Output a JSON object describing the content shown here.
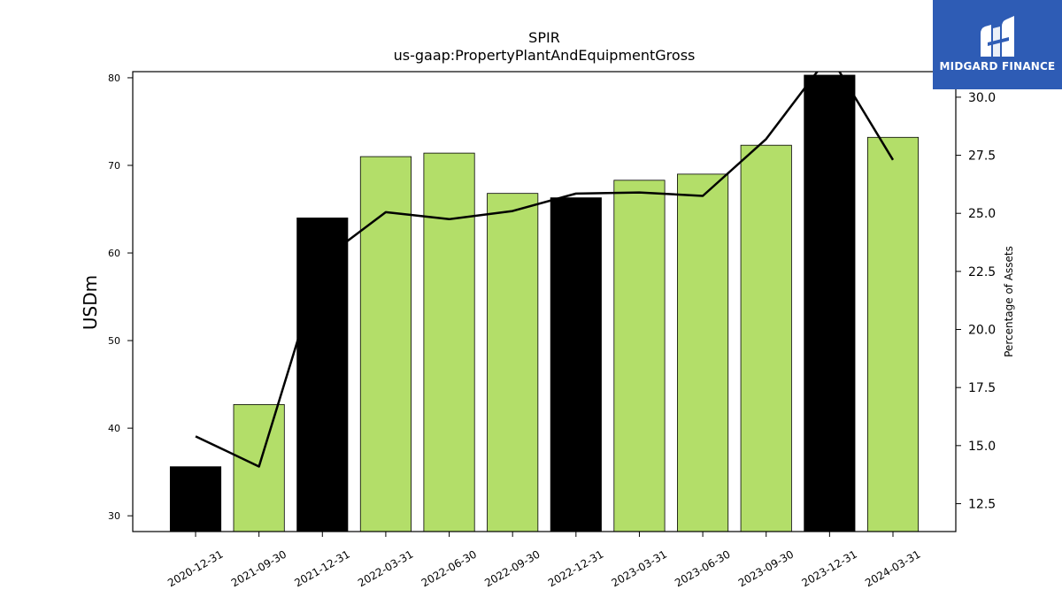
{
  "chart_data": {
    "type": "bar",
    "title": "SPIR",
    "subtitle": "us-gaap:PropertyPlantAndEquipmentGross",
    "ylabel": "USDm",
    "y2label": "Percentage of Assets",
    "ylim": [
      28.2,
      80.7
    ],
    "y2lim": [
      11.3,
      31.1
    ],
    "yticks": [
      30,
      40,
      50,
      60,
      70,
      80
    ],
    "y2ticks": [
      "12.5",
      "15.0",
      "17.5",
      "20.0",
      "22.5",
      "25.0",
      "27.5",
      "30.0"
    ],
    "categories": [
      "2020-12-31",
      "2021-09-30",
      "2021-12-31",
      "2022-03-31",
      "2022-06-30",
      "2022-09-30",
      "2022-12-31",
      "2023-03-31",
      "2023-06-30",
      "2023-09-30",
      "2023-12-31",
      "2024-03-31"
    ],
    "series": [
      {
        "kind": "bar",
        "values": [
          35.6,
          42.7,
          64.0,
          71.0,
          71.4,
          66.8,
          66.3,
          68.3,
          69.0,
          72.3,
          80.3,
          73.2
        ],
        "colors": [
          "#000000",
          "#b3de69",
          "#000000",
          "#b3de69",
          "#b3de69",
          "#b3de69",
          "#000000",
          "#b3de69",
          "#b3de69",
          "#b3de69",
          "#000000",
          "#b3de69"
        ]
      },
      {
        "kind": "line",
        "axis": "right",
        "values": [
          15.4,
          14.1,
          23.0,
          25.05,
          24.75,
          25.1,
          25.85,
          25.9,
          25.75,
          28.2,
          31.8,
          27.3
        ]
      }
    ],
    "bar_edge_color": "#000000",
    "line_color": "#000000",
    "grid": false
  },
  "logo": {
    "text": "MIDGARD FINANCE",
    "background": "#2e5cb5"
  }
}
